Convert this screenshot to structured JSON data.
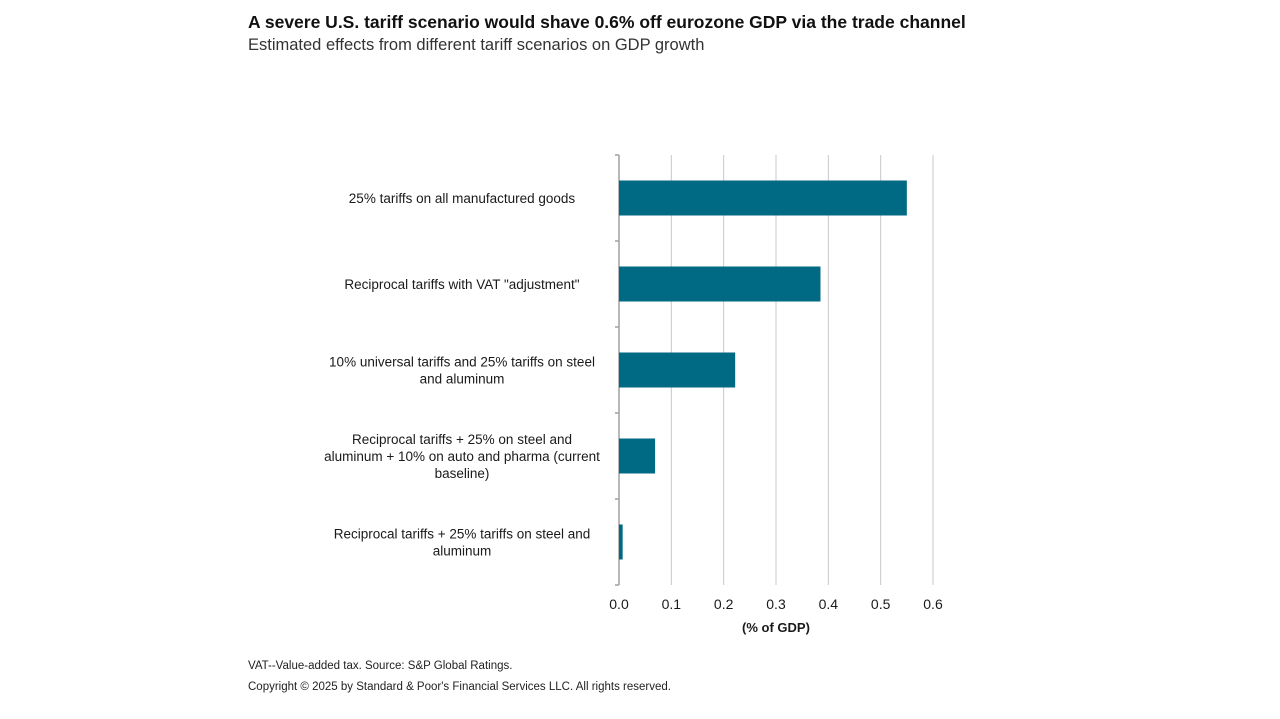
{
  "header": {
    "title": "A severe U.S. tariff scenario would shave 0.6% off eurozone GDP via the trade channel",
    "subtitle": "Estimated effects from different tariff scenarios on GDP growth"
  },
  "footer": {
    "note": "VAT--Value-added tax. Source: S&P Global Ratings.",
    "copyright": "Copyright © 2025 by Standard & Poor's Financial Services LLC. All rights reserved."
  },
  "chart_data": {
    "type": "bar",
    "orientation": "horizontal",
    "categories": [
      "25% tariffs on all manufactured goods",
      "Reciprocal tariffs with VAT \"adjustment\"",
      "10% universal tariffs and 25% tariffs on steel and aluminum",
      "Reciprocal tariffs + 25% on steel and aluminum + 10% on auto and pharma (current baseline)",
      "Reciprocal tariffs + 25% tariffs on steel and aluminum"
    ],
    "category_lines": [
      [
        "25% tariffs on all manufactured goods"
      ],
      [
        "Reciprocal tariffs with VAT \"adjustment\""
      ],
      [
        "10% universal tariffs and 25% tariffs on steel",
        "and aluminum"
      ],
      [
        "Reciprocal tariffs + 25% on steel and",
        "aluminum + 10% on auto and pharma (current",
        "baseline)"
      ],
      [
        "Reciprocal tariffs + 25% tariffs on steel and",
        "aluminum"
      ]
    ],
    "values": [
      0.55,
      0.385,
      0.222,
      0.069,
      0.007
    ],
    "xlim": [
      0,
      0.6
    ],
    "xticks": [
      "0.0",
      "0.1",
      "0.2",
      "0.3",
      "0.4",
      "0.5",
      "0.6"
    ],
    "xlabel": "(% of GDP)",
    "ylabel": "",
    "grid": true,
    "bar_color": "#006a85",
    "grid_color": "#c8c8c8",
    "axis_color": "#a0a0a0"
  }
}
